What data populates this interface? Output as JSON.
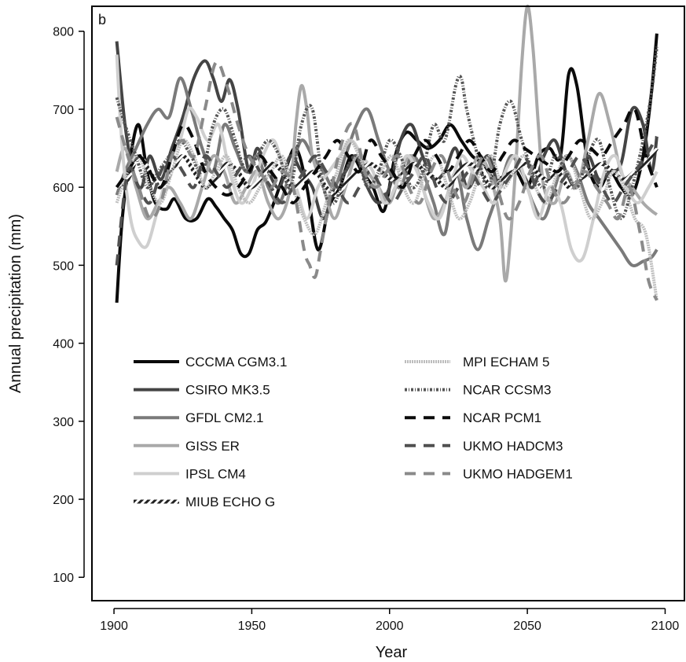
{
  "chart_data": {
    "type": "line",
    "panel_label": "b",
    "xlabel": "Year",
    "ylabel": "Annual precipitation (mm)",
    "xlim": [
      1892,
      2107
    ],
    "ylim": [
      70,
      832
    ],
    "x_ticks": [
      1900,
      1950,
      2000,
      2050,
      2100
    ],
    "y_ticks": [
      100,
      200,
      300,
      400,
      500,
      600,
      700,
      800
    ],
    "grid": false,
    "legend_position": "inside-lower-left, two columns",
    "series": [
      {
        "name": "CCCMA CGM3.1",
        "color": "#0a0a0a",
        "style": "solid",
        "x": [
          1901,
          1903,
          1906,
          1909,
          1912,
          1915,
          1919,
          1922,
          1926,
          1930,
          1934,
          1937,
          1940,
          1943,
          1946,
          1949,
          1952,
          1955,
          1958,
          1962,
          1966,
          1970,
          1974,
          1978,
          1982,
          1986,
          1990,
          1994,
          1998,
          2002,
          2006,
          2010,
          2014,
          2018,
          2022,
          2026,
          2030,
          2034,
          2038,
          2042,
          2046,
          2050,
          2054,
          2058,
          2062,
          2065,
          2068,
          2072,
          2076,
          2080,
          2084,
          2088,
          2092,
          2095,
          2097
        ],
        "y": [
          452,
          560,
          640,
          680,
          620,
          580,
          572,
          585,
          560,
          560,
          585,
          575,
          560,
          545,
          515,
          515,
          545,
          555,
          580,
          620,
          650,
          600,
          520,
          575,
          600,
          640,
          620,
          600,
          570,
          640,
          670,
          660,
          650,
          660,
          680,
          660,
          640,
          630,
          610,
          615,
          620,
          600,
          640,
          650,
          640,
          745,
          730,
          630,
          600,
          620,
          600,
          590,
          640,
          720,
          797
        ]
      },
      {
        "name": "CSIRO MK3.5",
        "color": "#444444",
        "style": "solid",
        "x": [
          1901,
          1904,
          1907,
          1910,
          1913,
          1917,
          1921,
          1925,
          1929,
          1933,
          1936,
          1939,
          1942,
          1945,
          1949,
          1952,
          1956,
          1960,
          1964,
          1968,
          1972,
          1976,
          1980,
          1984,
          1988,
          1992,
          1996,
          2000,
          2004,
          2008,
          2012,
          2016,
          2020,
          2024,
          2028,
          2032,
          2036,
          2040,
          2044,
          2048,
          2052,
          2056,
          2060,
          2064,
          2068,
          2072,
          2076,
          2080,
          2084,
          2088,
          2092,
          2095,
          2097
        ],
        "y": [
          787,
          680,
          620,
          600,
          640,
          610,
          650,
          690,
          740,
          762,
          740,
          710,
          738,
          700,
          620,
          650,
          620,
          600,
          640,
          620,
          600,
          560,
          600,
          620,
          640,
          600,
          580,
          600,
          660,
          680,
          640,
          610,
          620,
          650,
          600,
          620,
          640,
          600,
          640,
          620,
          600,
          640,
          660,
          620,
          600,
          640,
          610,
          620,
          630,
          700,
          680,
          620,
          665
        ]
      },
      {
        "name": "GFDL CM2.1",
        "color": "#7a7a7a",
        "style": "solid",
        "x": [
          1901,
          1904,
          1908,
          1912,
          1916,
          1920,
          1924,
          1928,
          1932,
          1936,
          1940,
          1944,
          1948,
          1952,
          1956,
          1960,
          1964,
          1968,
          1972,
          1976,
          1980,
          1984,
          1988,
          1992,
          1996,
          2000,
          2004,
          2008,
          2012,
          2016,
          2020,
          2024,
          2028,
          2032,
          2036,
          2040,
          2044,
          2048,
          2052,
          2056,
          2060,
          2064,
          2068,
          2072,
          2076,
          2080,
          2084,
          2088,
          2092,
          2095,
          2097
        ],
        "y": [
          590,
          620,
          650,
          680,
          700,
          690,
          740,
          700,
          650,
          620,
          680,
          650,
          620,
          640,
          600,
          580,
          620,
          660,
          640,
          620,
          600,
          640,
          680,
          700,
          660,
          620,
          600,
          640,
          620,
          580,
          540,
          620,
          560,
          520,
          560,
          600,
          640,
          620,
          580,
          560,
          600,
          640,
          620,
          580,
          560,
          540,
          520,
          500,
          505,
          510,
          520
        ]
      },
      {
        "name": "GISS ER",
        "color": "#a9a9a9",
        "style": "solid",
        "x": [
          1901,
          1904,
          1908,
          1912,
          1916,
          1920,
          1924,
          1928,
          1932,
          1936,
          1940,
          1944,
          1948,
          1952,
          1956,
          1960,
          1964,
          1966,
          1968,
          1970,
          1972,
          1976,
          1980,
          1984,
          1988,
          1992,
          1996,
          2000,
          2004,
          2008,
          2012,
          2016,
          2020,
          2024,
          2028,
          2032,
          2036,
          2040,
          2042,
          2044,
          2046,
          2048,
          2050,
          2052,
          2054,
          2056,
          2060,
          2064,
          2068,
          2072,
          2076,
          2080,
          2084,
          2088,
          2092,
          2095,
          2097
        ],
        "y": [
          620,
          650,
          600,
          560,
          580,
          600,
          580,
          560,
          600,
          640,
          620,
          580,
          600,
          620,
          580,
          560,
          600,
          680,
          730,
          700,
          640,
          600,
          560,
          600,
          640,
          620,
          600,
          580,
          620,
          640,
          600,
          560,
          580,
          620,
          600,
          640,
          620,
          560,
          480,
          540,
          640,
          760,
          832,
          780,
          680,
          600,
          580,
          620,
          600,
          660,
          720,
          680,
          620,
          600,
          580,
          570,
          565
        ]
      },
      {
        "name": "IPSL CM4",
        "color": "#cfcfcf",
        "style": "solid",
        "x": [
          1901,
          1903,
          1906,
          1909,
          1912,
          1915,
          1918,
          1921,
          1924,
          1927,
          1930,
          1934,
          1938,
          1942,
          1946,
          1950,
          1954,
          1958,
          1962,
          1966,
          1970,
          1974,
          1978,
          1982,
          1986,
          1990,
          1994,
          1998,
          2002,
          2006,
          2010,
          2014,
          2018,
          2022,
          2026,
          2030,
          2034,
          2038,
          2042,
          2046,
          2050,
          2054,
          2058,
          2062,
          2066,
          2070,
          2074,
          2078,
          2082,
          2086,
          2090,
          2094,
          2097
        ],
        "y": [
          770,
          650,
          560,
          530,
          525,
          560,
          600,
          640,
          660,
          700,
          690,
          660,
          680,
          620,
          580,
          600,
          640,
          660,
          620,
          600,
          560,
          600,
          620,
          640,
          660,
          640,
          620,
          580,
          600,
          640,
          620,
          580,
          560,
          600,
          640,
          620,
          600,
          580,
          620,
          640,
          600,
          560,
          600,
          580,
          520,
          508,
          560,
          620,
          640,
          600,
          580,
          600,
          620
        ]
      },
      {
        "name": "MIUB ECHO G",
        "color": "#333333",
        "style": "hatched",
        "x": [
          1901,
          1905,
          1909,
          1913,
          1917,
          1921,
          1925,
          1929,
          1933,
          1937,
          1941,
          1945,
          1949,
          1953,
          1957,
          1961,
          1965,
          1969,
          1973,
          1977,
          1981,
          1985,
          1989,
          1993,
          1997,
          2001,
          2005,
          2009,
          2013,
          2017,
          2021,
          2025,
          2029,
          2033,
          2037,
          2041,
          2045,
          2049,
          2053,
          2057,
          2061,
          2065,
          2069,
          2073,
          2077,
          2081,
          2085,
          2089,
          2093,
          2097
        ],
        "y": [
          600,
          610,
          640,
          620,
          600,
          620,
          640,
          620,
          600,
          610,
          630,
          620,
          600,
          610,
          630,
          620,
          600,
          610,
          620,
          600,
          590,
          610,
          620,
          630,
          620,
          610,
          620,
          630,
          620,
          610,
          600,
          620,
          630,
          620,
          600,
          610,
          620,
          630,
          620,
          610,
          620,
          600,
          610,
          620,
          630,
          620,
          610,
          620,
          630,
          650
        ]
      },
      {
        "name": "MPI ECHAM 5",
        "color": "#bdbdbd",
        "style": "dotted",
        "x": [
          1901,
          1905,
          1909,
          1913,
          1917,
          1921,
          1925,
          1929,
          1933,
          1937,
          1941,
          1945,
          1949,
          1953,
          1957,
          1961,
          1965,
          1969,
          1973,
          1977,
          1981,
          1985,
          1989,
          1993,
          1997,
          2001,
          2005,
          2009,
          2013,
          2017,
          2021,
          2025,
          2029,
          2033,
          2037,
          2041,
          2045,
          2049,
          2053,
          2057,
          2061,
          2065,
          2069,
          2073,
          2077,
          2081,
          2085,
          2089,
          2093,
          2097
        ],
        "y": [
          580,
          620,
          640,
          600,
          580,
          620,
          660,
          640,
          600,
          620,
          640,
          600,
          580,
          600,
          620,
          640,
          600,
          560,
          540,
          580,
          620,
          660,
          640,
          600,
          620,
          640,
          600,
          580,
          620,
          640,
          600,
          560,
          580,
          620,
          640,
          600,
          620,
          640,
          600,
          580,
          620,
          640,
          600,
          560,
          580,
          620,
          600,
          560,
          540,
          455
        ]
      },
      {
        "name": "NCAR CCSM3",
        "color": "#555555",
        "style": "speckled",
        "x": [
          1901,
          1904,
          1908,
          1912,
          1916,
          1920,
          1924,
          1928,
          1932,
          1936,
          1940,
          1944,
          1948,
          1952,
          1956,
          1960,
          1964,
          1968,
          1972,
          1976,
          1980,
          1984,
          1988,
          1992,
          1996,
          2000,
          2004,
          2008,
          2012,
          2016,
          2020,
          2024,
          2026,
          2028,
          2032,
          2036,
          2040,
          2044,
          2048,
          2052,
          2056,
          2060,
          2064,
          2068,
          2072,
          2076,
          2080,
          2084,
          2088,
          2092,
          2095,
          2097
        ],
        "y": [
          715,
          680,
          640,
          600,
          620,
          640,
          660,
          640,
          620,
          680,
          700,
          660,
          620,
          640,
          660,
          640,
          600,
          680,
          700,
          600,
          580,
          620,
          640,
          600,
          620,
          660,
          640,
          600,
          620,
          680,
          660,
          730,
          740,
          700,
          640,
          600,
          680,
          710,
          660,
          620,
          600,
          640,
          620,
          600,
          640,
          660,
          600,
          560,
          600,
          660,
          720,
          780
        ]
      },
      {
        "name": "NCAR PCM1",
        "color": "#0a0a0a",
        "style": "dashed",
        "x": [
          1901,
          1905,
          1909,
          1913,
          1917,
          1921,
          1925,
          1929,
          1933,
          1937,
          1941,
          1945,
          1949,
          1953,
          1957,
          1961,
          1965,
          1969,
          1973,
          1977,
          1981,
          1985,
          1989,
          1993,
          1997,
          2001,
          2005,
          2009,
          2013,
          2017,
          2021,
          2025,
          2029,
          2033,
          2037,
          2041,
          2045,
          2049,
          2053,
          2057,
          2061,
          2065,
          2069,
          2073,
          2077,
          2081,
          2085,
          2089,
          2093,
          2097
        ],
        "y": [
          600,
          620,
          640,
          620,
          600,
          640,
          680,
          660,
          620,
          600,
          590,
          600,
          620,
          640,
          620,
          600,
          580,
          600,
          620,
          640,
          660,
          640,
          620,
          660,
          640,
          620,
          600,
          640,
          660,
          640,
          620,
          640,
          660,
          640,
          620,
          640,
          660,
          650,
          640,
          630,
          620,
          640,
          660,
          650,
          640,
          660,
          680,
          700,
          640,
          600
        ]
      },
      {
        "name": "UKMO HADCM3",
        "color": "#505050",
        "style": "dashed",
        "x": [
          1901,
          1905,
          1909,
          1913,
          1917,
          1921,
          1925,
          1929,
          1933,
          1937,
          1941,
          1945,
          1949,
          1953,
          1957,
          1961,
          1965,
          1969,
          1973,
          1977,
          1981,
          1985,
          1989,
          1993,
          1997,
          2001,
          2005,
          2009,
          2013,
          2017,
          2021,
          2025,
          2029,
          2033,
          2037,
          2041,
          2045,
          2049,
          2053,
          2057,
          2061,
          2065,
          2069,
          2073,
          2077,
          2081,
          2085,
          2089,
          2093,
          2097
        ],
        "y": [
          500,
          620,
          600,
          580,
          620,
          640,
          620,
          600,
          640,
          620,
          600,
          620,
          640,
          620,
          600,
          580,
          600,
          620,
          640,
          620,
          600,
          580,
          600,
          620,
          600,
          580,
          600,
          620,
          640,
          600,
          580,
          600,
          620,
          600,
          580,
          600,
          620,
          640,
          600,
          580,
          600,
          620,
          640,
          620,
          600,
          580,
          600,
          620,
          640,
          665
        ]
      },
      {
        "name": "UKMO HADGEM1",
        "color": "#8a8a8a",
        "style": "dashed",
        "x": [
          1901,
          1905,
          1909,
          1913,
          1917,
          1921,
          1925,
          1929,
          1933,
          1937,
          1941,
          1945,
          1949,
          1953,
          1957,
          1961,
          1965,
          1969,
          1971,
          1973,
          1975,
          1979,
          1983,
          1987,
          1991,
          1995,
          1999,
          2003,
          2007,
          2011,
          2015,
          2019,
          2023,
          2027,
          2031,
          2035,
          2039,
          2043,
          2047,
          2051,
          2055,
          2059,
          2063,
          2067,
          2071,
          2075,
          2079,
          2083,
          2087,
          2091,
          2094,
          2097
        ],
        "y": [
          690,
          640,
          600,
          560,
          580,
          640,
          660,
          640,
          700,
          760,
          730,
          680,
          640,
          620,
          600,
          620,
          600,
          520,
          500,
          485,
          520,
          600,
          660,
          680,
          620,
          600,
          620,
          640,
          600,
          580,
          620,
          640,
          600,
          580,
          620,
          640,
          600,
          560,
          580,
          620,
          640,
          600,
          580,
          600,
          620,
          600,
          580,
          560,
          600,
          540,
          480,
          455
        ]
      }
    ]
  }
}
